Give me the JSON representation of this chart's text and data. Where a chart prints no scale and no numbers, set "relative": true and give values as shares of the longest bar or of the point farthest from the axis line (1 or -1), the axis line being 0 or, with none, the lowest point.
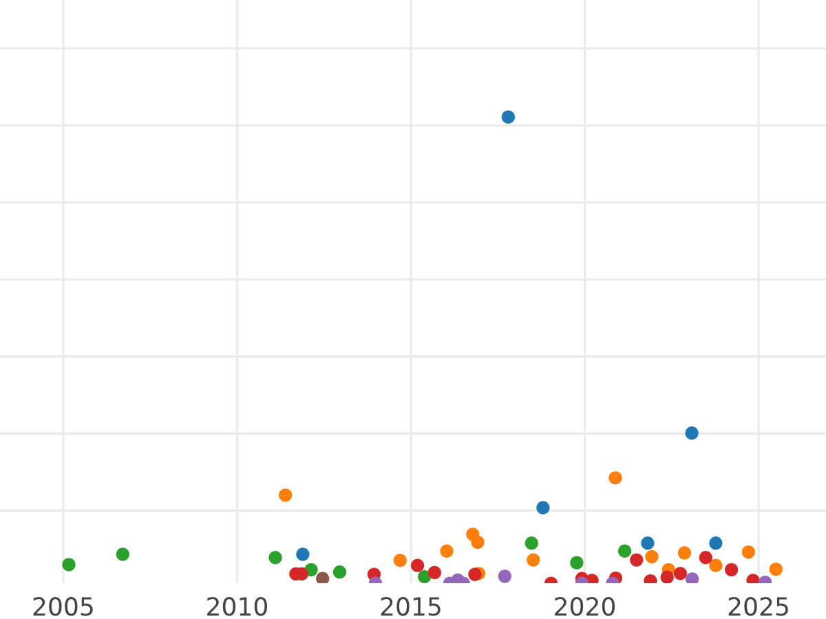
{
  "chart_data": {
    "type": "scatter",
    "relative": true,
    "marker": "circle",
    "grid": true,
    "legend": false,
    "xlim": [
      2003.18,
      2026.94
    ],
    "xticks": [
      2005,
      2010,
      2015,
      2020,
      2025
    ],
    "series": [
      {
        "color": "#1f77b4",
        "x": [
          2011.89,
          2017.8,
          2018.8,
          2021.81,
          2023.08,
          2023.77
        ],
        "values": [
          0.062,
          1.0,
          0.162,
          0.086,
          0.322,
          0.086
        ]
      },
      {
        "color": "#ff7f0e",
        "x": [
          2011.39,
          2014.69,
          2016.03,
          2016.78,
          2016.92,
          2016.95,
          2018.52,
          2020.88,
          2021.93,
          2022.41,
          2022.87,
          2023.77,
          2024.71,
          2025.5
        ],
        "values": [
          0.189,
          0.049,
          0.069,
          0.105,
          0.088,
          0.021,
          0.05,
          0.226,
          0.057,
          0.029,
          0.065,
          0.038,
          0.067,
          0.03
        ]
      },
      {
        "color": "#2ca02c",
        "x": [
          2005.16,
          2006.71,
          2011.1,
          2012.13,
          2012.95,
          2015.39,
          2018.47,
          2019.77,
          2021.15
        ],
        "values": [
          0.04,
          0.062,
          0.055,
          0.029,
          0.024,
          0.014,
          0.086,
          0.044,
          0.069
        ]
      },
      {
        "color": "#d62728",
        "x": [
          2011.69,
          2011.86,
          2013.94,
          2015.19,
          2015.68,
          2016.84,
          2019.03,
          2019.92,
          2020.21,
          2020.89,
          2021.49,
          2021.89,
          2022.37,
          2022.75,
          2023.48,
          2024.22,
          2024.84
        ],
        "values": [
          0.02,
          0.02,
          0.019,
          0.038,
          0.023,
          0.019,
          0.0,
          0.01,
          0.006,
          0.011,
          0.05,
          0.005,
          0.013,
          0.021,
          0.055,
          0.029,
          0.006
        ]
      },
      {
        "color": "#9467bd",
        "x": [
          2013.98,
          2016.12,
          2016.35,
          2016.51,
          2017.7,
          2019.92,
          2020.8,
          2023.09,
          2025.19
        ],
        "values": [
          0.0,
          0.0,
          0.007,
          0.0,
          0.015,
          0.0,
          0.0,
          0.009,
          0.002
        ]
      },
      {
        "color": "#8c564b",
        "x": [
          2012.46
        ],
        "values": [
          0.01
        ]
      }
    ]
  }
}
